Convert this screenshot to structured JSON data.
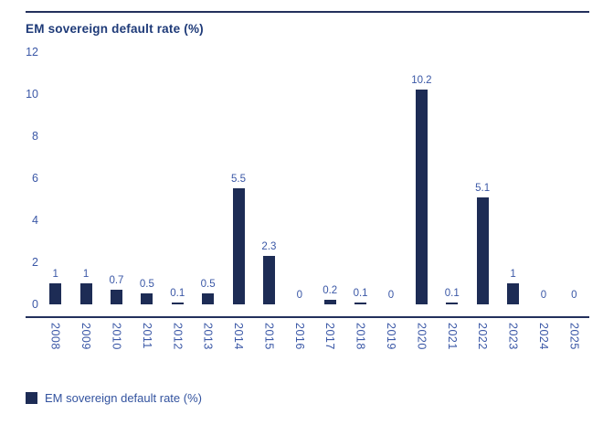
{
  "chart_data": {
    "type": "bar",
    "title": "EM sovereign default rate (%)",
    "categories": [
      "2008",
      "2009",
      "2010",
      "2011",
      "2012",
      "2013",
      "2014",
      "2015",
      "2016",
      "2017",
      "2018",
      "2019",
      "2020",
      "2021",
      "2022",
      "2023",
      "2024",
      "2025"
    ],
    "values": [
      1,
      1,
      0.7,
      0.5,
      0.1,
      0.5,
      5.5,
      2.3,
      0,
      0.2,
      0.1,
      0,
      10.2,
      0.1,
      5.1,
      1,
      0,
      0
    ],
    "value_labels": [
      "1",
      "1",
      "0.7",
      "0.5",
      "0.1",
      "0.5",
      "5.5",
      "2.3",
      "0",
      "0.2",
      "0.1",
      "0",
      "10.2",
      "0.1",
      "5.1",
      "1",
      "0",
      "0"
    ],
    "xlabel": "",
    "ylabel": "",
    "y_ticks": [
      12,
      10,
      8,
      6,
      4,
      2,
      0
    ],
    "ylim": [
      0,
      12
    ],
    "grid": false,
    "legend": {
      "position": "bottom",
      "label": "EM sovereign default rate (%)"
    }
  },
  "colors": {
    "bar": "#1d2c55",
    "title_text": "#1e3a78",
    "axis_label_text": "#3a57a6",
    "legend_text": "#33539f",
    "rule": "#23305c"
  }
}
